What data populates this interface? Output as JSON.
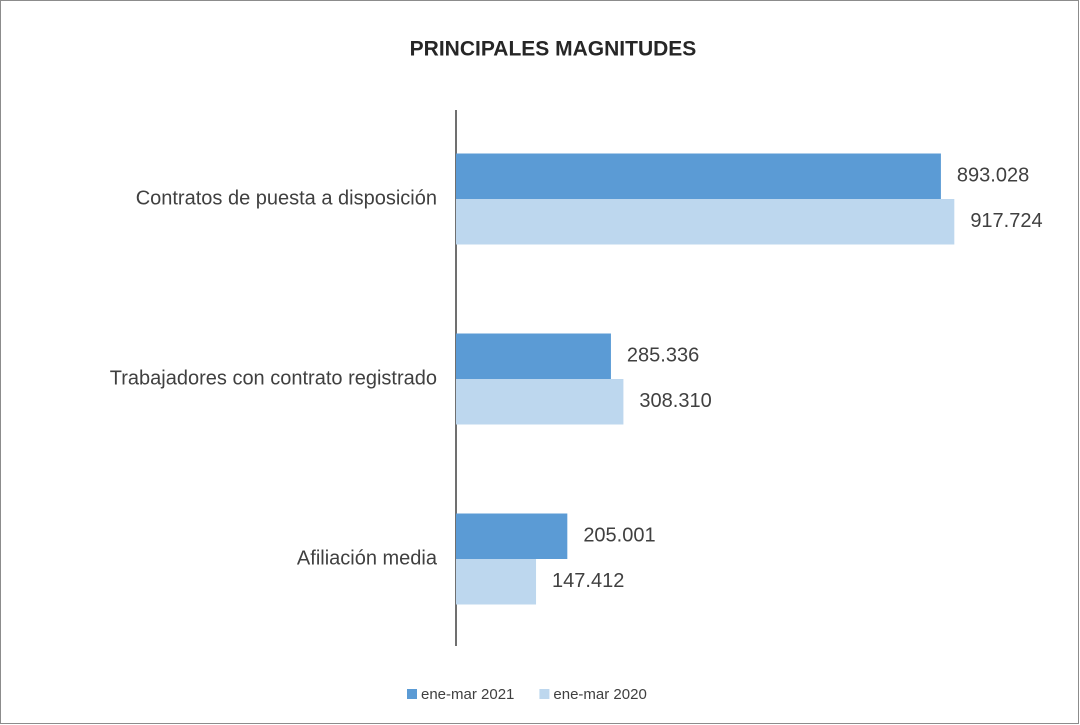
{
  "chart_data": {
    "type": "barh",
    "title": "PRINCIPALES MAGNITUDES",
    "categories": [
      "Contratos de puesta a disposición",
      "Trabajadores con contrato registrado",
      "Afiliación media"
    ],
    "series": [
      {
        "name": "ene-mar 2021",
        "color": "#5b9bd5",
        "values": [
          893028,
          285336,
          205001
        ],
        "value_labels": [
          "893.028",
          "285.336",
          "205.001"
        ]
      },
      {
        "name": "ene-mar 2020",
        "color": "#bdd7ee",
        "values": [
          917724,
          308310,
          147412
        ],
        "value_labels": [
          "917.724",
          "308.310",
          "147.412"
        ]
      }
    ],
    "xlim": [
      0,
      1000000
    ]
  }
}
